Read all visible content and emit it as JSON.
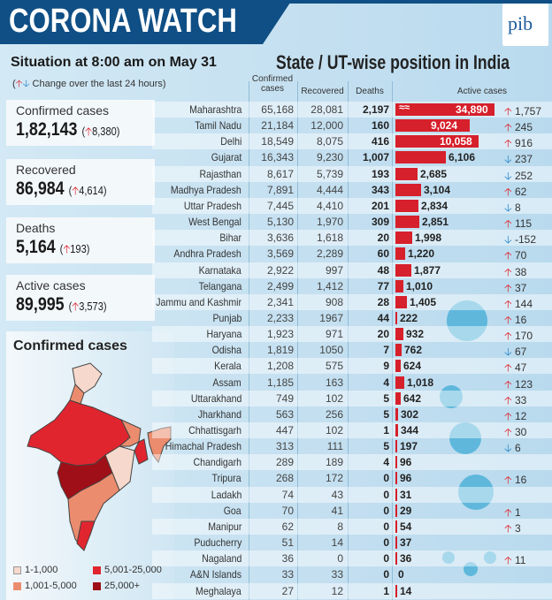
{
  "header": {
    "title": "CORONA WATCH",
    "situation": "Situation at 8:00 am on May 31",
    "change_note": "Change over the last 24 hours",
    "table_title": "State / UT-wise position in India",
    "logo": "pib"
  },
  "stats": [
    {
      "label": "Confirmed cases",
      "value": "1,82,143",
      "change": "8,380",
      "direction": "up"
    },
    {
      "label": "Recovered",
      "value": "86,984",
      "change": "4,614",
      "direction": "up"
    },
    {
      "label": "Deaths",
      "value": "5,164",
      "change": "193",
      "direction": "up"
    },
    {
      "label": "Active cases",
      "value": "89,995",
      "change": "3,573",
      "direction": "up"
    }
  ],
  "map": {
    "title": "Confirmed cases",
    "legend": [
      {
        "label": "1-1,000",
        "color": "#f6d9cc"
      },
      {
        "label": "1,001-5,000",
        "color": "#eb8c6e"
      },
      {
        "label": "5,001-25,000",
        "color": "#e0252f"
      },
      {
        "label": "25,000+",
        "color": "#9e0f17"
      }
    ]
  },
  "colors": {
    "bar": "#d6202b",
    "up": "#e0252f",
    "down": "#2585c8",
    "banner": "#0f4f85"
  },
  "chart_data": {
    "type": "bar",
    "columns": [
      "Confirmed cases",
      "Recovered",
      "Deaths",
      "Active cases"
    ],
    "rows": [
      {
        "state": "Maharashtra",
        "confirmed": "65,168",
        "recovered": "28,081",
        "deaths": "2,197",
        "active": 34890,
        "active_label": "34,890",
        "change": "1,757",
        "dir": "up",
        "broken": true
      },
      {
        "state": "Tamil Nadu",
        "confirmed": "21,184",
        "recovered": "12,000",
        "deaths": "160",
        "active": 9024,
        "active_label": "9,024",
        "change": "245",
        "dir": "up"
      },
      {
        "state": "Delhi",
        "confirmed": "18,549",
        "recovered": "8,075",
        "deaths": "416",
        "active": 10058,
        "active_label": "10,058",
        "change": "916",
        "dir": "up"
      },
      {
        "state": "Gujarat",
        "confirmed": "16,343",
        "recovered": "9,230",
        "deaths": "1,007",
        "active": 6106,
        "active_label": "6,106",
        "change": "237",
        "dir": "down"
      },
      {
        "state": "Rajasthan",
        "confirmed": "8,617",
        "recovered": "5,739",
        "deaths": "193",
        "active": 2685,
        "active_label": "2,685",
        "change": "252",
        "dir": "down"
      },
      {
        "state": "Madhya Pradesh",
        "confirmed": "7,891",
        "recovered": "4,444",
        "deaths": "343",
        "active": 3104,
        "active_label": "3,104",
        "change": "62",
        "dir": "up"
      },
      {
        "state": "Uttar Pradesh",
        "confirmed": "7,445",
        "recovered": "4,410",
        "deaths": "201",
        "active": 2834,
        "active_label": "2,834",
        "change": "8",
        "dir": "down"
      },
      {
        "state": "West Bengal",
        "confirmed": "5,130",
        "recovered": "1,970",
        "deaths": "309",
        "active": 2851,
        "active_label": "2,851",
        "change": "115",
        "dir": "up"
      },
      {
        "state": "Bihar",
        "confirmed": "3,636",
        "recovered": "1,618",
        "deaths": "20",
        "active": 1998,
        "active_label": "1,998",
        "change": "-152",
        "dir": "down"
      },
      {
        "state": "Andhra Pradesh",
        "confirmed": "3,569",
        "recovered": "2,289",
        "deaths": "60",
        "active": 1220,
        "active_label": "1,220",
        "change": "70",
        "dir": "up"
      },
      {
        "state": "Karnataka",
        "confirmed": "2,922",
        "recovered": "997",
        "deaths": "48",
        "active": 1877,
        "active_label": "1,877",
        "change": "38",
        "dir": "up"
      },
      {
        "state": "Telangana",
        "confirmed": "2,499",
        "recovered": "1,412",
        "deaths": "77",
        "active": 1010,
        "active_label": "1,010",
        "change": "37",
        "dir": "up"
      },
      {
        "state": "Jammu and Kashmir",
        "confirmed": "2,341",
        "recovered": "908",
        "deaths": "28",
        "active": 1405,
        "active_label": "1,405",
        "change": "144",
        "dir": "up"
      },
      {
        "state": "Punjab",
        "confirmed": "2,233",
        "recovered": "1967",
        "deaths": "44",
        "active": 222,
        "active_label": "222",
        "change": "16",
        "dir": "up"
      },
      {
        "state": "Haryana",
        "confirmed": "1,923",
        "recovered": "971",
        "deaths": "20",
        "active": 932,
        "active_label": "932",
        "change": "170",
        "dir": "up"
      },
      {
        "state": "Odisha",
        "confirmed": "1,819",
        "recovered": "1050",
        "deaths": "7",
        "active": 762,
        "active_label": "762",
        "change": "67",
        "dir": "down"
      },
      {
        "state": "Kerala",
        "confirmed": "1,208",
        "recovered": "575",
        "deaths": "9",
        "active": 624,
        "active_label": "624",
        "change": "47",
        "dir": "up"
      },
      {
        "state": "Assam",
        "confirmed": "1,185",
        "recovered": "163",
        "deaths": "4",
        "active": 1018,
        "active_label": "1,018",
        "change": "123",
        "dir": "up"
      },
      {
        "state": "Uttarakhand",
        "confirmed": "749",
        "recovered": "102",
        "deaths": "5",
        "active": 642,
        "active_label": "642",
        "change": "33",
        "dir": "up"
      },
      {
        "state": "Jharkhand",
        "confirmed": "563",
        "recovered": "256",
        "deaths": "5",
        "active": 302,
        "active_label": "302",
        "change": "12",
        "dir": "up"
      },
      {
        "state": "Chhattisgarh",
        "confirmed": "447",
        "recovered": "102",
        "deaths": "1",
        "active": 344,
        "active_label": "344",
        "change": "30",
        "dir": "up"
      },
      {
        "state": "Himachal Pradesh",
        "confirmed": "313",
        "recovered": "111",
        "deaths": "5",
        "active": 197,
        "active_label": "197",
        "change": "6",
        "dir": "down"
      },
      {
        "state": "Chandigarh",
        "confirmed": "289",
        "recovered": "189",
        "deaths": "4",
        "active": 96,
        "active_label": "96",
        "change": "",
        "dir": ""
      },
      {
        "state": "Tripura",
        "confirmed": "268",
        "recovered": "172",
        "deaths": "0",
        "active": 96,
        "active_label": "96",
        "change": "16",
        "dir": "up"
      },
      {
        "state": "Ladakh",
        "confirmed": "74",
        "recovered": "43",
        "deaths": "0",
        "active": 31,
        "active_label": "31",
        "change": "",
        "dir": ""
      },
      {
        "state": "Goa",
        "confirmed": "70",
        "recovered": "41",
        "deaths": "0",
        "active": 29,
        "active_label": "29",
        "change": "1",
        "dir": "up"
      },
      {
        "state": "Manipur",
        "confirmed": "62",
        "recovered": "8",
        "deaths": "0",
        "active": 54,
        "active_label": "54",
        "change": "3",
        "dir": "up"
      },
      {
        "state": "Puducherry",
        "confirmed": "51",
        "recovered": "14",
        "deaths": "0",
        "active": 37,
        "active_label": "37",
        "change": "",
        "dir": ""
      },
      {
        "state": "Nagaland",
        "confirmed": "36",
        "recovered": "0",
        "deaths": "0",
        "active": 36,
        "active_label": "36",
        "change": "11",
        "dir": "up"
      },
      {
        "state": "A&N Islands",
        "confirmed": "33",
        "recovered": "33",
        "deaths": "0",
        "active": 0,
        "active_label": "0",
        "change": "",
        "dir": ""
      },
      {
        "state": "Meghalaya",
        "confirmed": "27",
        "recovered": "12",
        "deaths": "1",
        "active": 14,
        "active_label": "14",
        "change": "",
        "dir": ""
      }
    ]
  }
}
